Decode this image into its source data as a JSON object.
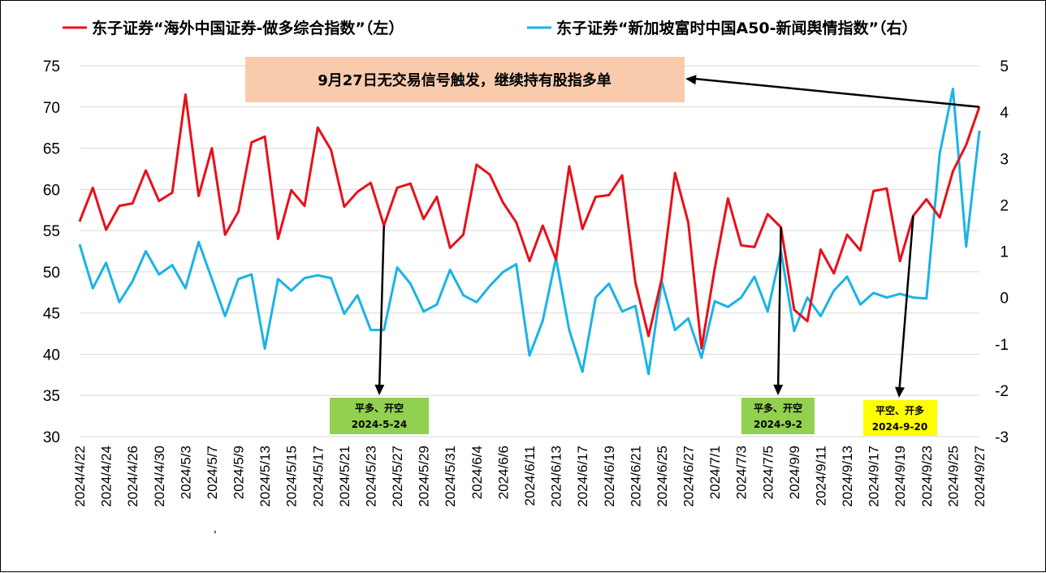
{
  "chart_data": {
    "type": "line",
    "series": [
      {
        "name": "东子证券“海外中国证券-做多综合指数”（左）",
        "axis": "left",
        "color": "#e8101a",
        "values": [
          56.1,
          60.2,
          55.1,
          58.0,
          58.3,
          62.3,
          58.6,
          59.6,
          71.5,
          59.2,
          65.0,
          54.5,
          57.3,
          65.7,
          66.4,
          54.0,
          59.9,
          58.0,
          67.5,
          64.8,
          57.9,
          59.7,
          60.8,
          55.6,
          60.2,
          60.7,
          56.4,
          59.1,
          52.9,
          54.5,
          63.0,
          61.8,
          58.4,
          56.0,
          51.3,
          55.6,
          51.5,
          62.8,
          55.2,
          59.1,
          59.3,
          61.7,
          48.7,
          42.2,
          49.2,
          62.0,
          56.0,
          40.7,
          50.4,
          58.9,
          53.2,
          53.0,
          57.0,
          55.4,
          45.4,
          44.0,
          52.7,
          49.8,
          54.5,
          52.6,
          59.8,
          60.1,
          51.3,
          56.8,
          58.8,
          56.6,
          62.2,
          65.4,
          70.0
        ]
      },
      {
        "name": "东子证券“新加坡富时中国A50-新闻舆情指数”（右）",
        "axis": "right",
        "color": "#1ab3e6",
        "values": [
          1.15,
          0.2,
          0.75,
          -0.1,
          0.35,
          1.0,
          0.5,
          0.7,
          0.2,
          1.2,
          0.4,
          -0.4,
          0.4,
          0.5,
          -1.1,
          0.4,
          0.15,
          0.42,
          0.48,
          0.42,
          -0.35,
          0.05,
          -0.7,
          -0.7,
          0.65,
          0.3,
          -0.3,
          -0.15,
          0.6,
          0.05,
          -0.1,
          0.25,
          0.55,
          0.72,
          -1.25,
          -0.5,
          0.85,
          -0.7,
          -1.6,
          0.0,
          0.3,
          -0.3,
          -0.18,
          -1.65,
          0.35,
          -0.7,
          -0.45,
          -1.3,
          -0.08,
          -0.2,
          0.0,
          0.45,
          -0.3,
          1.0,
          -0.72,
          0.0,
          -0.4,
          0.15,
          0.45,
          -0.15,
          0.1,
          0.0,
          0.08,
          0.0,
          -0.02,
          3.1,
          4.5,
          1.1,
          3.6
        ]
      }
    ],
    "x": [
      "2024/4/22",
      "2024/4/23",
      "2024/4/24",
      "2024/4/25",
      "2024/4/26",
      "2024/4/29",
      "2024/4/30",
      "2024/5/2",
      "2024/5/3",
      "2024/5/6",
      "2024/5/7",
      "2024/5/8",
      "2024/5/9",
      "2024/5/10",
      "2024/5/13",
      "2024/5/14",
      "2024/5/15",
      "2024/5/16",
      "2024/5/17",
      "2024/5/20",
      "2024/5/21",
      "2024/5/22",
      "2024/5/23",
      "2024/5/24",
      "2024/5/27",
      "2024/5/28",
      "2024/5/29",
      "2024/5/30",
      "2024/5/31",
      "2024/6/3",
      "2024/6/4",
      "2024/6/5",
      "2024/6/6",
      "2024/6/7",
      "2024/6/11",
      "2024/6/12",
      "2024/6/13",
      "2024/6/14",
      "2024/6/17",
      "2024/6/18",
      "2024/6/19",
      "2024/6/20",
      "2024/6/21",
      "2024/6/24",
      "2024/6/25",
      "2024/6/26",
      "2024/6/27",
      "2024/6/28",
      "2024/7/1",
      "2024/7/2",
      "2024/7/3",
      "2024/7/4",
      "2024/7/5",
      "2024/9/2",
      "2024/9/9",
      "2024/9/10",
      "2024/9/11",
      "2024/9/12",
      "2024/9/13",
      "2024/9/16",
      "2024/9/17",
      "2024/9/18",
      "2024/9/19",
      "2024/9/20",
      "2024/9/23",
      "2024/9/24",
      "2024/9/25",
      "2024/9/26",
      "2024/9/27"
    ],
    "x_tick_labels": [
      "2024/4/22",
      "2024/4/24",
      "2024/4/26",
      "2024/4/30",
      "2024/5/3",
      "2024/5/7",
      "2024/5/9",
      "2024/5/13",
      "2024/5/15",
      "2024/5/17",
      "2024/5/21",
      "2024/5/23",
      "2024/5/27",
      "2024/5/29",
      "2024/5/31",
      "2024/6/4",
      "2024/6/6",
      "2024/6/11",
      "2024/6/13",
      "2024/6/17",
      "2024/6/19",
      "2024/6/21",
      "2024/6/25",
      "2024/6/27",
      "2024/7/1",
      "2024/7/3",
      "2024/7/5",
      "2024/9/9",
      "2024/9/11",
      "2024/9/13",
      "2024/9/17",
      "2024/9/19",
      "2024/9/23",
      "2024/9/25",
      "2024/9/27"
    ],
    "y_left": {
      "min": 30,
      "max": 75,
      "ticks": [
        30,
        35,
        40,
        45,
        50,
        55,
        60,
        65,
        70,
        75
      ]
    },
    "y_right": {
      "min": -3,
      "max": 5,
      "ticks": [
        -3,
        -2,
        -1,
        0,
        1,
        2,
        3,
        4,
        5
      ]
    },
    "grid": true,
    "legend_position": "top",
    "callout": {
      "text": "9月27日无交易信号触发，继续持有股指多单",
      "bg": "#f8cbad",
      "target": "2024/9/27"
    },
    "signals": [
      {
        "target": "2024/5/24",
        "line1": "平多、开空",
        "line2": "2024-5-24",
        "bg": "#92d050"
      },
      {
        "target": "2024/9/2",
        "line1": "平多、开空",
        "line2": "2024-9-2",
        "bg": "#92d050"
      },
      {
        "target": "2024/9/20",
        "line1": "平空、开多",
        "line2": "2024-9-20",
        "bg": "#ffff00"
      }
    ],
    "stray_mark": "’"
  }
}
